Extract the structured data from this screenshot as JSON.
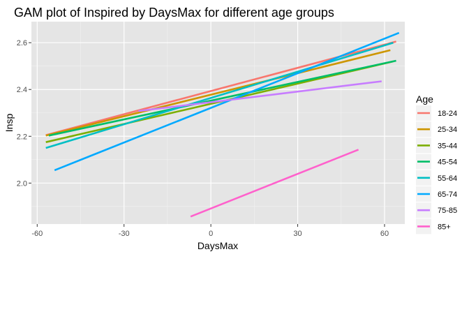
{
  "chart_data": {
    "type": "line",
    "title": "GAM plot of Inspired by DaysMax for different age groups",
    "xlabel": "DaysMax",
    "ylabel": "Insp",
    "xlim": [
      -62,
      67
    ],
    "ylim": [
      1.825,
      2.69
    ],
    "x_ticks": [
      -60,
      -30,
      0,
      30,
      60
    ],
    "x_tick_labels": [
      "-60",
      "-30",
      "0",
      "30",
      "60"
    ],
    "y_ticks": [
      2.0,
      2.2,
      2.4,
      2.6
    ],
    "y_tick_labels": [
      "2.0",
      "2.2",
      "2.4",
      "2.6"
    ],
    "grid": true,
    "background": "#e5e5e5",
    "legend": {
      "title": "Age",
      "position": "right"
    },
    "series": [
      {
        "name": "18-24",
        "color": "#F8766D",
        "x": [
          -57,
          64
        ],
        "y": [
          2.205,
          2.605
        ]
      },
      {
        "name": "25-34",
        "color": "#CD9600",
        "x": [
          -57,
          62
        ],
        "y": [
          2.203,
          2.568
        ]
      },
      {
        "name": "35-44",
        "color": "#7CAE00",
        "x": [
          -57,
          63
        ],
        "y": [
          2.175,
          2.52
        ]
      },
      {
        "name": "45-54",
        "color": "#00BE67",
        "x": [
          -56,
          64
        ],
        "y": [
          2.203,
          2.523
        ]
      },
      {
        "name": "55-64",
        "color": "#00BFC4",
        "x": [
          -57,
          63
        ],
        "y": [
          2.15,
          2.6
        ]
      },
      {
        "name": "65-74",
        "color": "#00A9FF",
        "x": [
          -54,
          65
        ],
        "y": [
          2.055,
          2.642
        ]
      },
      {
        "name": "75-85",
        "color": "#C77CFF",
        "x": [
          -25,
          59
        ],
        "y": [
          2.308,
          2.435
        ]
      },
      {
        "name": "85+",
        "color": "#FF61CC",
        "x": [
          -7,
          51
        ],
        "y": [
          1.857,
          2.143
        ]
      }
    ]
  }
}
